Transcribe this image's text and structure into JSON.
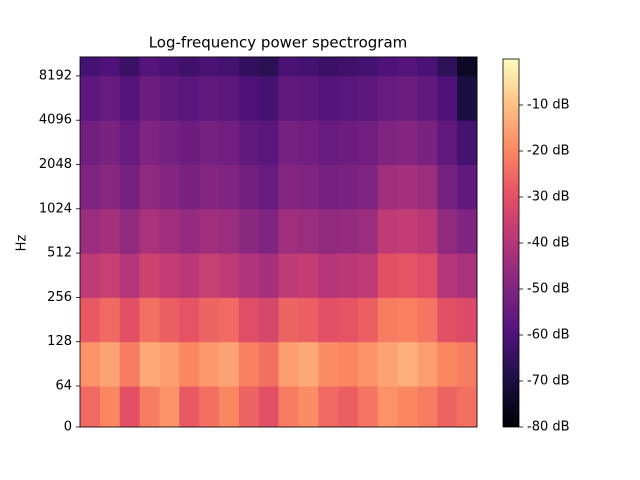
{
  "chart_data": {
    "type": "heatmap",
    "title": "Log-frequency power spectrogram",
    "y_label": "Hz",
    "yscale": "symlog",
    "colormap": "magma",
    "ylim": [
      0,
      11025
    ],
    "yticks": [
      0,
      64,
      128,
      256,
      512,
      1024,
      2048,
      4096,
      8192
    ],
    "y_edges": [
      0,
      64,
      128,
      256,
      512,
      1024,
      2048,
      4096,
      8192,
      11025
    ],
    "clim": [
      -80,
      0
    ],
    "cticks": [
      {
        "value": -80,
        "label": "-80 dB"
      },
      {
        "value": -70,
        "label": "-70 dB"
      },
      {
        "value": -60,
        "label": "-60 dB"
      },
      {
        "value": -50,
        "label": "-50 dB"
      },
      {
        "value": -40,
        "label": "-40 dB"
      },
      {
        "value": -30,
        "label": "-30 dB"
      },
      {
        "value": -20,
        "label": "-20 dB"
      },
      {
        "value": -10,
        "label": "-10 dB"
      }
    ],
    "z": [
      [
        -25,
        -20,
        -30,
        -22,
        -18,
        -28,
        -24,
        -20,
        -26,
        -30,
        -22,
        -19,
        -25,
        -27,
        -23,
        -18,
        -20,
        -22,
        -26,
        -24
      ],
      [
        -18,
        -15,
        -22,
        -14,
        -16,
        -20,
        -17,
        -15,
        -21,
        -24,
        -16,
        -14,
        -19,
        -20,
        -18,
        -15,
        -13,
        -16,
        -20,
        -22
      ],
      [
        -28,
        -25,
        -30,
        -24,
        -27,
        -29,
        -26,
        -25,
        -31,
        -33,
        -26,
        -27,
        -30,
        -29,
        -27,
        -22,
        -21,
        -23,
        -30,
        -32
      ],
      [
        -38,
        -36,
        -40,
        -35,
        -37,
        -39,
        -36,
        -38,
        -41,
        -43,
        -38,
        -37,
        -40,
        -39,
        -38,
        -30,
        -29,
        -31,
        -40,
        -42
      ],
      [
        -45,
        -43,
        -47,
        -42,
        -44,
        -46,
        -44,
        -45,
        -48,
        -50,
        -44,
        -45,
        -47,
        -46,
        -45,
        -38,
        -37,
        -39,
        -47,
        -50
      ],
      [
        -50,
        -48,
        -52,
        -47,
        -49,
        -51,
        -49,
        -50,
        -53,
        -55,
        -49,
        -50,
        -52,
        -51,
        -50,
        -44,
        -43,
        -45,
        -52,
        -56
      ],
      [
        -53,
        -51,
        -55,
        -50,
        -52,
        -54,
        -52,
        -53,
        -56,
        -58,
        -52,
        -53,
        -55,
        -54,
        -53,
        -50,
        -49,
        -51,
        -56,
        -62
      ],
      [
        -57,
        -55,
        -59,
        -54,
        -56,
        -58,
        -56,
        -57,
        -60,
        -62,
        -56,
        -57,
        -59,
        -58,
        -57,
        -55,
        -54,
        -56,
        -60,
        -70
      ],
      [
        -62,
        -60,
        -64,
        -59,
        -61,
        -63,
        -61,
        -62,
        -65,
        -67,
        -61,
        -62,
        -64,
        -63,
        -62,
        -60,
        -59,
        -61,
        -66,
        -75
      ]
    ]
  }
}
